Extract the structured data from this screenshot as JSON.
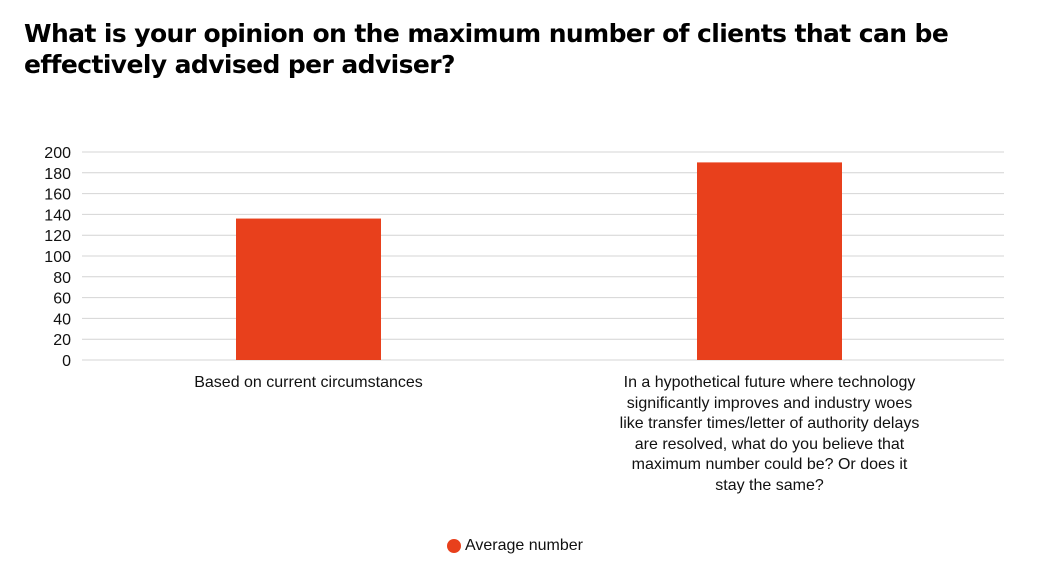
{
  "title": "What is your opinion on the maximum number of clients that can be effectively advised per adviser?",
  "colors": {
    "bar": "#e8401c",
    "grid": "#d4d4d4",
    "text": "#111111"
  },
  "chart_data": {
    "type": "bar",
    "title": "What is your opinion on the maximum number of clients that can be effectively advised per adviser?",
    "categories": [
      "Based on current circumstances",
      "In a hypothetical future where technology significantly improves and industry woes like transfer times/letter of authority delays are resolved, what do you believe that maximum number could be? Or does it stay the same?"
    ],
    "series": [
      {
        "name": "Average number",
        "values": [
          136,
          190
        ]
      }
    ],
    "yticks": [
      0,
      20,
      40,
      60,
      80,
      100,
      120,
      140,
      160,
      180,
      200
    ],
    "ylim": [
      0,
      200
    ],
    "grid": true,
    "legend": "bottom-center"
  }
}
